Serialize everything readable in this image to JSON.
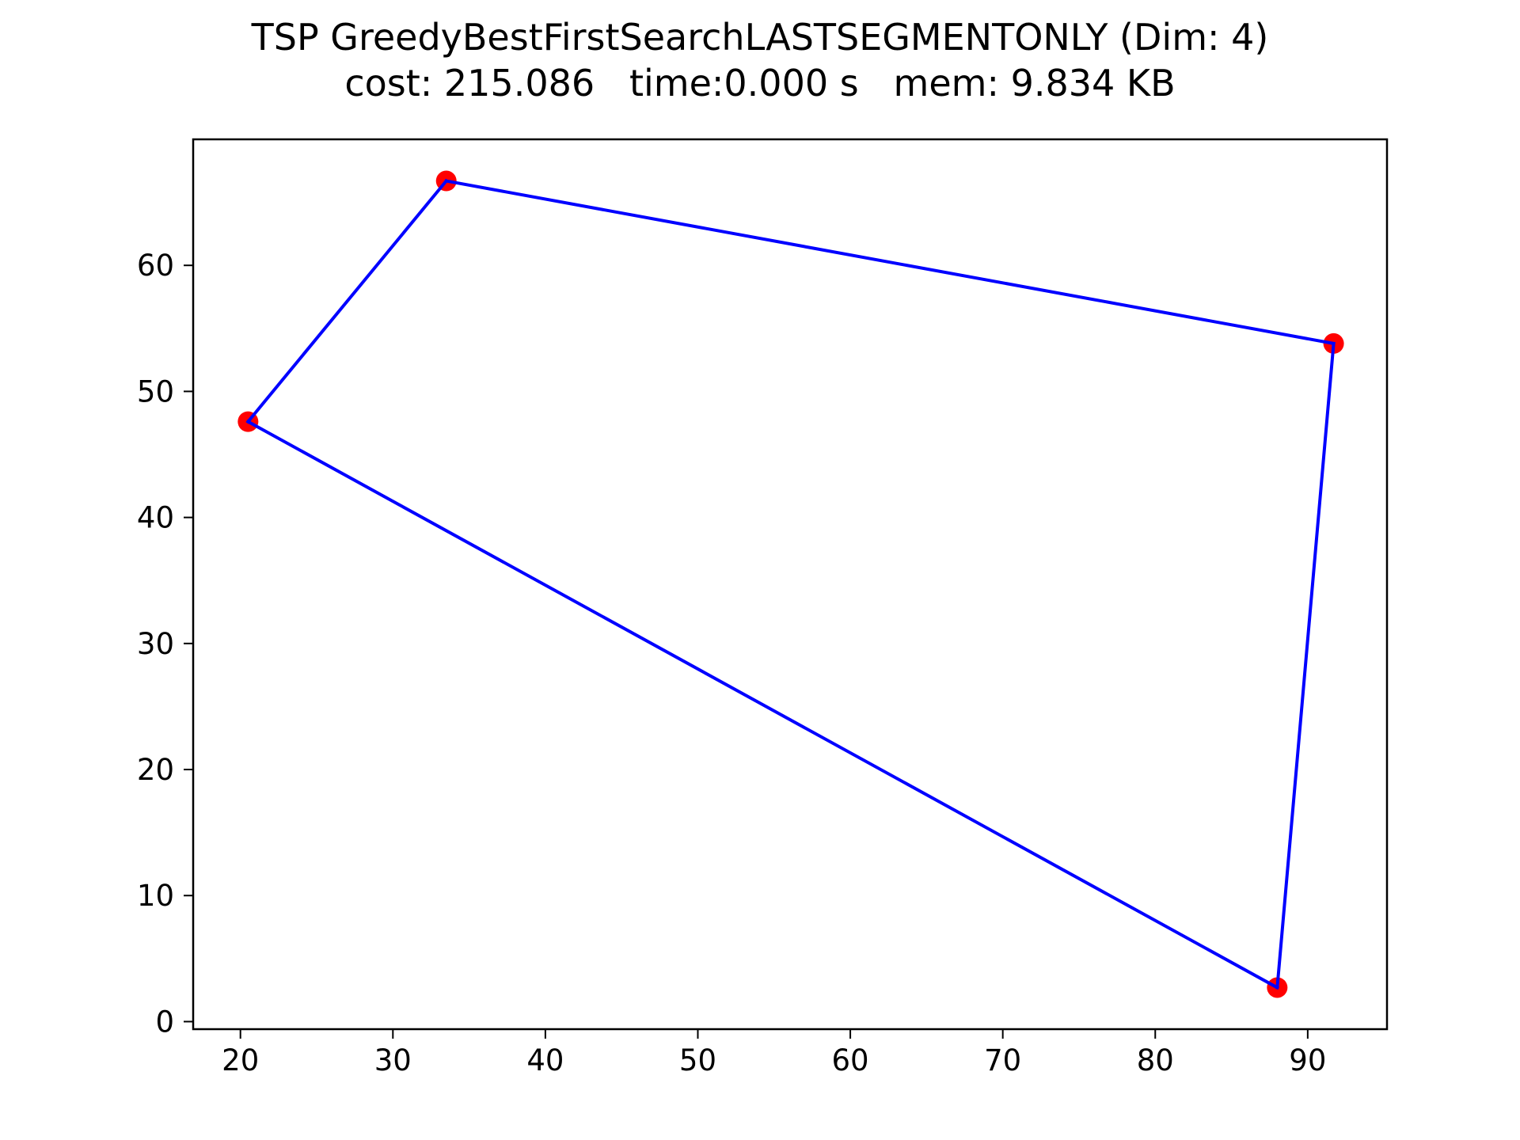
{
  "chart_data": {
    "type": "line",
    "title": "TSP GreedyBestFirstSearchLASTSEGMENTONLY (Dim: 4)",
    "subtitle": "cost: 215.086   time:0.000 s   mem: 9.834 KB",
    "xlabel": "",
    "ylabel": "",
    "xlim": [
      16.9,
      95.2
    ],
    "ylim": [
      -0.6,
      70.0
    ],
    "xticks": [
      20,
      30,
      40,
      50,
      60,
      70,
      80,
      90
    ],
    "yticks": [
      0,
      10,
      20,
      30,
      40,
      50,
      60
    ],
    "grid": false,
    "points": [
      {
        "x": 20.5,
        "y": 47.6
      },
      {
        "x": 33.5,
        "y": 66.7
      },
      {
        "x": 91.7,
        "y": 53.8
      },
      {
        "x": 88.0,
        "y": 2.7
      }
    ],
    "route": [
      0,
      1,
      2,
      3,
      0
    ],
    "line_color": "#0000ff",
    "marker_color": "#ff0000"
  }
}
